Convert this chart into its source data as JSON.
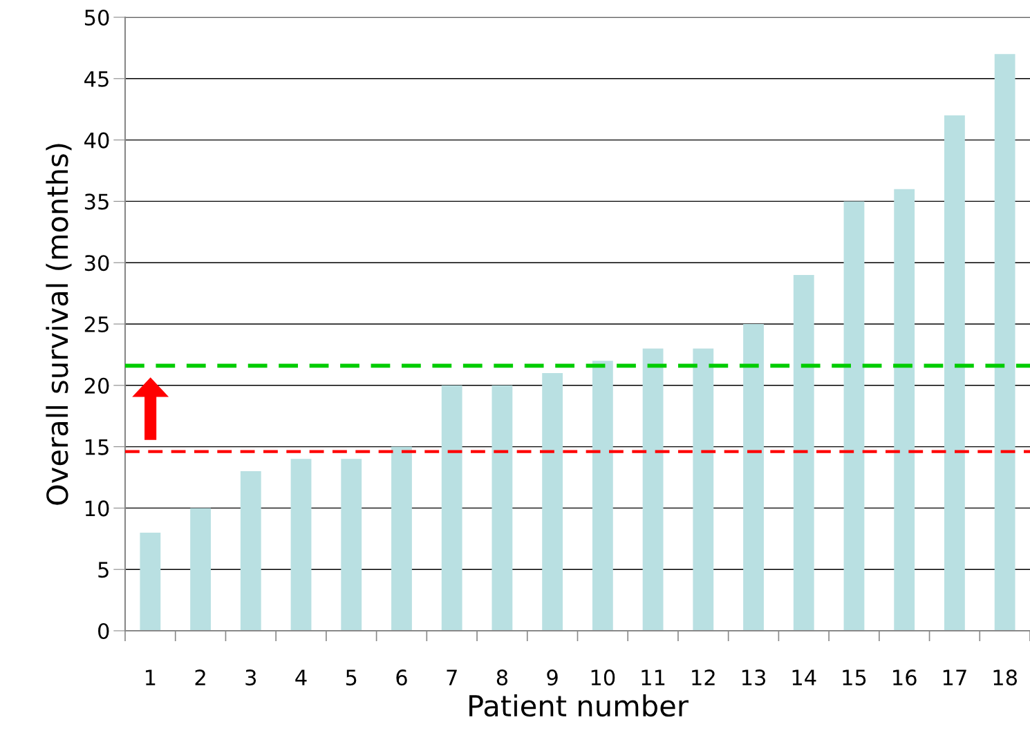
{
  "chart_data": {
    "type": "bar",
    "xlabel": "Patient number",
    "ylabel": "Overall survival (months)",
    "categories": [
      "1",
      "2",
      "3",
      "4",
      "5",
      "6",
      "7",
      "8",
      "9",
      "10",
      "11",
      "12",
      "13",
      "14",
      "15",
      "16",
      "17",
      "18"
    ],
    "values": [
      8,
      10,
      13,
      14,
      14,
      15,
      20,
      20,
      21,
      22,
      23,
      23,
      25,
      29,
      35,
      36,
      42,
      47
    ],
    "color": "#b9e0e2",
    "ylim": [
      0,
      50
    ],
    "yticks": [
      0,
      5,
      10,
      15,
      20,
      25,
      30,
      35,
      40,
      45,
      50
    ],
    "grid": "y",
    "legend": false,
    "ref_lines": [
      {
        "axis": "y",
        "value": 21.6,
        "color": "#00cc00",
        "line_style": "dashed"
      },
      {
        "axis": "y",
        "value": 14.6,
        "color": "#ff0000",
        "line_style": "dashed"
      }
    ]
  }
}
